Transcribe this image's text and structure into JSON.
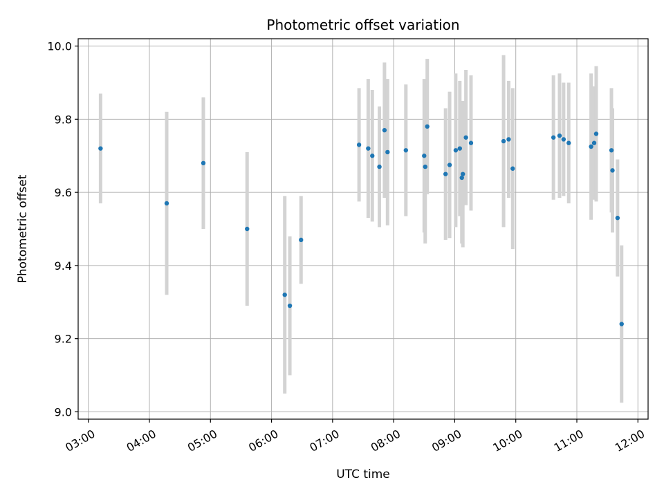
{
  "chart_data": {
    "type": "scatter",
    "title": "Photometric offset variation",
    "xlabel": "UTC time",
    "ylabel": "Photometric offset",
    "xlim": [
      "02:50",
      "12:10"
    ],
    "ylim": [
      8.98,
      10.02
    ],
    "x_ticks": [
      "03:00",
      "04:00",
      "05:00",
      "06:00",
      "07:00",
      "08:00",
      "09:00",
      "10:00",
      "11:00",
      "12:00"
    ],
    "y_ticks": [
      9.0,
      9.2,
      9.4,
      9.6,
      9.8,
      10.0
    ],
    "grid": true,
    "colors": {
      "point": "#1f77b4",
      "errorbar": "#d3d3d3",
      "grid": "#b0b0b0"
    },
    "points": [
      {
        "x": "03:12",
        "y": 9.72,
        "err": 0.15
      },
      {
        "x": "04:17",
        "y": 9.57,
        "err": 0.25
      },
      {
        "x": "04:53",
        "y": 9.68,
        "err": 0.18
      },
      {
        "x": "05:36",
        "y": 9.5,
        "err": 0.21
      },
      {
        "x": "06:13",
        "y": 9.32,
        "err": 0.27
      },
      {
        "x": "06:18",
        "y": 9.29,
        "err": 0.19
      },
      {
        "x": "06:29",
        "y": 9.47,
        "err": 0.12
      },
      {
        "x": "07:26",
        "y": 9.73,
        "err": 0.155
      },
      {
        "x": "07:35",
        "y": 9.72,
        "err": 0.19
      },
      {
        "x": "07:39",
        "y": 9.7,
        "err": 0.18
      },
      {
        "x": "07:46",
        "y": 9.67,
        "err": 0.165
      },
      {
        "x": "07:51",
        "y": 9.77,
        "err": 0.185
      },
      {
        "x": "07:54",
        "y": 9.71,
        "err": 0.2
      },
      {
        "x": "08:12",
        "y": 9.715,
        "err": 0.18
      },
      {
        "x": "08:30",
        "y": 9.7,
        "err": 0.21
      },
      {
        "x": "08:31",
        "y": 9.67,
        "err": 0.21
      },
      {
        "x": "08:33",
        "y": 9.78,
        "err": 0.185
      },
      {
        "x": "08:51",
        "y": 9.65,
        "err": 0.18
      },
      {
        "x": "08:55",
        "y": 9.675,
        "err": 0.2
      },
      {
        "x": "09:01",
        "y": 9.715,
        "err": 0.21
      },
      {
        "x": "09:05",
        "y": 9.72,
        "err": 0.185
      },
      {
        "x": "09:07",
        "y": 9.64,
        "err": 0.18
      },
      {
        "x": "09:08",
        "y": 9.65,
        "err": 0.2
      },
      {
        "x": "09:11",
        "y": 9.75,
        "err": 0.185
      },
      {
        "x": "09:16",
        "y": 9.735,
        "err": 0.185
      },
      {
        "x": "09:48",
        "y": 9.74,
        "err": 0.235
      },
      {
        "x": "09:53",
        "y": 9.745,
        "err": 0.16
      },
      {
        "x": "09:57",
        "y": 9.665,
        "err": 0.22
      },
      {
        "x": "10:37",
        "y": 9.75,
        "err": 0.17
      },
      {
        "x": "10:43",
        "y": 9.755,
        "err": 0.17
      },
      {
        "x": "10:47",
        "y": 9.745,
        "err": 0.155
      },
      {
        "x": "10:52",
        "y": 9.735,
        "err": 0.165
      },
      {
        "x": "11:14",
        "y": 9.725,
        "err": 0.2
      },
      {
        "x": "11:17",
        "y": 9.735,
        "err": 0.155
      },
      {
        "x": "11:19",
        "y": 9.76,
        "err": 0.185
      },
      {
        "x": "11:34",
        "y": 9.715,
        "err": 0.17
      },
      {
        "x": "11:35",
        "y": 9.66,
        "err": 0.17
      },
      {
        "x": "11:40",
        "y": 9.53,
        "err": 0.16
      },
      {
        "x": "11:44",
        "y": 9.24,
        "err": 0.215
      }
    ]
  }
}
